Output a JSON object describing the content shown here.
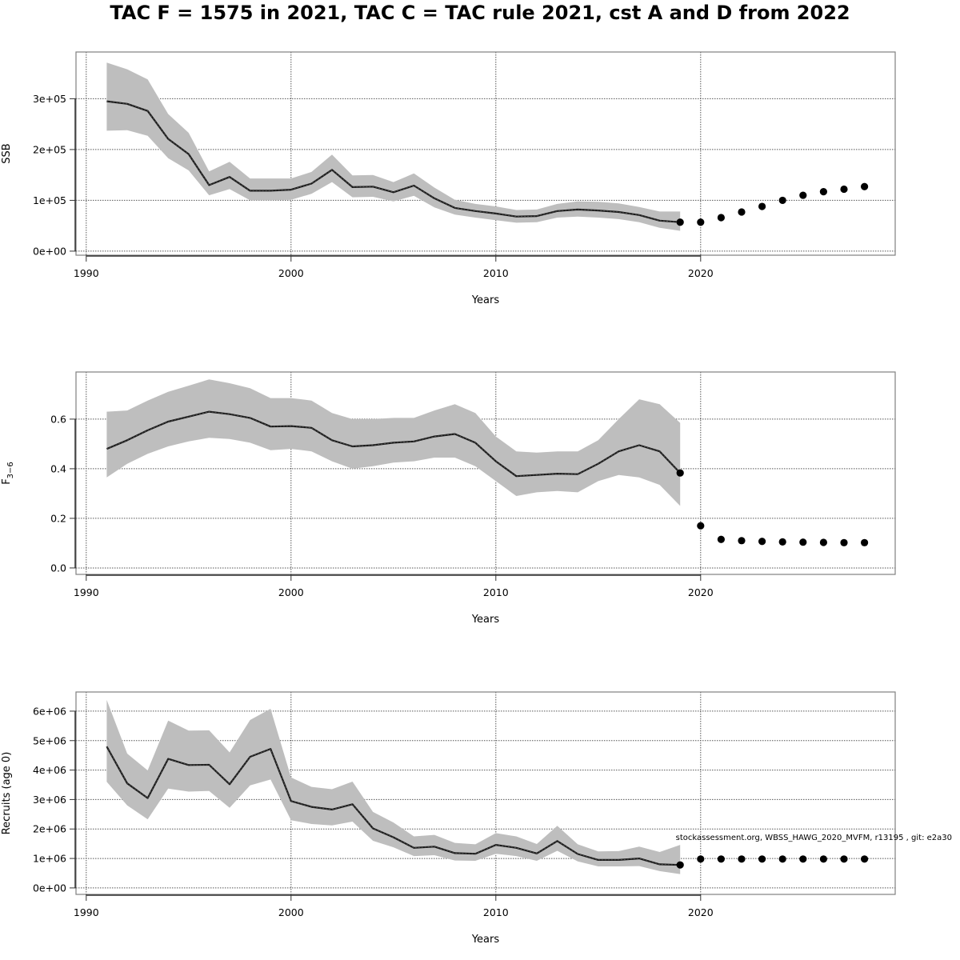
{
  "figure": {
    "title": "TAC F = 1575 in 2021, TAC C = TAC rule 2021, cst A and D from 2022",
    "footnote": "stockassessment.org, WBSS_HAWG_2020_MVFM, r13195 , git: e2a30",
    "colors": {
      "band": "#bebebe",
      "line": "#000000",
      "point": "#000000",
      "grid": "#555555",
      "frame": "#808080"
    }
  },
  "chart_data": [
    {
      "type": "line",
      "id": "ssb",
      "title": "",
      "xlabel": "Years",
      "ylabel": "SSB",
      "xlim": [
        1989.5,
        2029.5
      ],
      "ylim": [
        -8000,
        392000
      ],
      "xticks": [
        1990,
        2000,
        2010,
        2020
      ],
      "xtick_labels": [
        "1990",
        "2000",
        "2010",
        "2020"
      ],
      "yticks": [
        0,
        100000,
        200000,
        300000
      ],
      "ytick_labels": [
        "0e+00",
        "1e+05",
        "2e+05",
        "3e+05"
      ],
      "grid": true,
      "series": [
        {
          "name": "estimate",
          "x": [
            1991,
            1992,
            1993,
            1994,
            1995,
            1996,
            1997,
            1998,
            1999,
            2000,
            2001,
            2002,
            2003,
            2004,
            2005,
            2006,
            2007,
            2008,
            2009,
            2010,
            2011,
            2012,
            2013,
            2014,
            2015,
            2016,
            2017,
            2018,
            2019
          ],
          "values": [
            295000,
            290000,
            276000,
            221000,
            191000,
            130000,
            146000,
            119000,
            119000,
            121000,
            133000,
            160000,
            126000,
            127000,
            116000,
            129000,
            104000,
            85000,
            79000,
            74000,
            68000,
            69000,
            79000,
            82000,
            80000,
            77000,
            71000,
            60000,
            57000
          ],
          "lower": [
            237000,
            238000,
            227000,
            183000,
            159000,
            110000,
            122000,
            100000,
            100000,
            101000,
            113000,
            136000,
            106000,
            107000,
            98000,
            109000,
            86000,
            72000,
            66000,
            61000,
            56000,
            57000,
            66000,
            68000,
            66000,
            63000,
            57000,
            46000,
            40000
          ],
          "upper": [
            371000,
            358000,
            338000,
            270000,
            233000,
            157000,
            176000,
            143000,
            143000,
            143000,
            156000,
            190000,
            149000,
            150000,
            136000,
            153000,
            125000,
            101000,
            93000,
            88000,
            81000,
            82000,
            93000,
            98000,
            97000,
            94000,
            87000,
            78000,
            78000
          ]
        },
        {
          "name": "projection",
          "x": [
            2019,
            2020,
            2021,
            2022,
            2023,
            2024,
            2025,
            2026,
            2027,
            2028
          ],
          "values": [
            57000,
            57000,
            66000,
            77000,
            88000,
            100000,
            110000,
            117000,
            122000,
            127000
          ]
        }
      ]
    },
    {
      "type": "line",
      "id": "fbar",
      "title": "",
      "xlabel": "Years",
      "ylabel": "F",
      "ylabel_sub": "3−6",
      "xlim": [
        1989.5,
        2029.5
      ],
      "ylim": [
        -0.026,
        0.79
      ],
      "xticks": [
        1990,
        2000,
        2010,
        2020
      ],
      "xtick_labels": [
        "1990",
        "2000",
        "2010",
        "2020"
      ],
      "yticks": [
        0.0,
        0.2,
        0.4,
        0.6
      ],
      "ytick_labels": [
        "0.0",
        "0.2",
        "0.4",
        "0.6"
      ],
      "grid": true,
      "series": [
        {
          "name": "estimate",
          "x": [
            1991,
            1992,
            1993,
            1994,
            1995,
            1996,
            1997,
            1998,
            1999,
            2000,
            2001,
            2002,
            2003,
            2004,
            2005,
            2006,
            2007,
            2008,
            2009,
            2010,
            2011,
            2012,
            2013,
            2014,
            2015,
            2016,
            2017,
            2018,
            2019
          ],
          "values": [
            0.48,
            0.515,
            0.555,
            0.59,
            0.61,
            0.63,
            0.62,
            0.605,
            0.57,
            0.572,
            0.565,
            0.515,
            0.49,
            0.495,
            0.505,
            0.51,
            0.53,
            0.54,
            0.505,
            0.43,
            0.37,
            0.375,
            0.38,
            0.378,
            0.42,
            0.47,
            0.495,
            0.47,
            0.383
          ],
          "lower": [
            0.365,
            0.42,
            0.46,
            0.49,
            0.51,
            0.525,
            0.52,
            0.505,
            0.475,
            0.48,
            0.47,
            0.43,
            0.4,
            0.41,
            0.425,
            0.43,
            0.445,
            0.445,
            0.41,
            0.35,
            0.29,
            0.305,
            0.31,
            0.305,
            0.35,
            0.375,
            0.365,
            0.335,
            0.25
          ],
          "upper": [
            0.63,
            0.635,
            0.675,
            0.71,
            0.735,
            0.76,
            0.745,
            0.725,
            0.685,
            0.685,
            0.675,
            0.625,
            0.6,
            0.6,
            0.605,
            0.605,
            0.635,
            0.66,
            0.625,
            0.53,
            0.47,
            0.465,
            0.47,
            0.47,
            0.515,
            0.6,
            0.68,
            0.66,
            0.585
          ]
        },
        {
          "name": "projection",
          "x": [
            2019,
            2020,
            2021,
            2022,
            2023,
            2024,
            2025,
            2026,
            2027,
            2028
          ],
          "values": [
            0.383,
            0.17,
            0.115,
            0.11,
            0.107,
            0.105,
            0.104,
            0.103,
            0.102,
            0.102
          ]
        }
      ]
    },
    {
      "type": "line",
      "id": "recruits",
      "title": "",
      "xlabel": "Years",
      "ylabel": "Recruits (age 0)",
      "xlim": [
        1989.5,
        2029.5
      ],
      "ylim": [
        -220000,
        6650000
      ],
      "xticks": [
        1990,
        2000,
        2010,
        2020
      ],
      "xtick_labels": [
        "1990",
        "2000",
        "2010",
        "2020"
      ],
      "yticks": [
        0,
        1000000,
        2000000,
        3000000,
        4000000,
        5000000,
        6000000
      ],
      "ytick_labels": [
        "0e+00",
        "1e+06",
        "2e+06",
        "3e+06",
        "4e+06",
        "5e+06",
        "6e+06"
      ],
      "grid": true,
      "series": [
        {
          "name": "estimate",
          "x": [
            1991,
            1992,
            1993,
            1994,
            1995,
            1996,
            1997,
            1998,
            1999,
            2000,
            2001,
            2002,
            2003,
            2004,
            2005,
            2006,
            2007,
            2008,
            2009,
            2010,
            2011,
            2012,
            2013,
            2014,
            2015,
            2016,
            2017,
            2018,
            2019
          ],
          "values": [
            4800000,
            3550000,
            3050000,
            4380000,
            4170000,
            4180000,
            3520000,
            4450000,
            4720000,
            2950000,
            2750000,
            2660000,
            2840000,
            2020000,
            1720000,
            1360000,
            1400000,
            1180000,
            1160000,
            1460000,
            1360000,
            1170000,
            1590000,
            1150000,
            950000,
            950000,
            1000000,
            800000,
            780000
          ],
          "lower": [
            3600000,
            2800000,
            2330000,
            3370000,
            3270000,
            3290000,
            2720000,
            3480000,
            3680000,
            2300000,
            2170000,
            2120000,
            2250000,
            1600000,
            1380000,
            1080000,
            1110000,
            930000,
            920000,
            1160000,
            1080000,
            920000,
            1260000,
            900000,
            730000,
            730000,
            740000,
            570000,
            470000
          ],
          "upper": [
            6380000,
            4560000,
            3990000,
            5680000,
            5340000,
            5350000,
            4600000,
            5700000,
            6080000,
            3750000,
            3430000,
            3350000,
            3610000,
            2580000,
            2220000,
            1750000,
            1800000,
            1530000,
            1480000,
            1860000,
            1750000,
            1490000,
            2110000,
            1480000,
            1240000,
            1250000,
            1400000,
            1220000,
            1460000
          ]
        },
        {
          "name": "projection",
          "x": [
            2019,
            2020,
            2021,
            2022,
            2023,
            2024,
            2025,
            2026,
            2027,
            2028
          ],
          "values": [
            780000,
            980000,
            980000,
            980000,
            980000,
            980000,
            980000,
            980000,
            980000,
            980000
          ]
        }
      ]
    }
  ]
}
